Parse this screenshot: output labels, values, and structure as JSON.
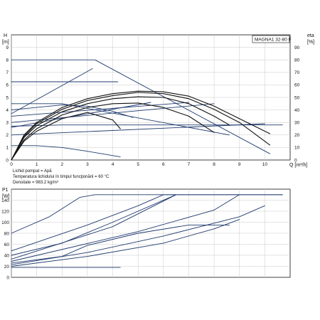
{
  "chart_data": [
    {
      "type": "line",
      "label": "MAGNA1 32-80 F",
      "ylabel_left": "H\n[m]",
      "ylabel_right": "eta\n[%]",
      "xlabel": "Q [m³/h]",
      "xlim": [
        0,
        11
      ],
      "ylim": [
        0,
        10
      ],
      "ylim_right": [
        0,
        100
      ],
      "xticks": [
        "0",
        "1",
        "2",
        "3",
        "4",
        "5",
        "6",
        "7",
        "8",
        "9",
        "10"
      ],
      "yticks_left": [
        "0",
        "1",
        "2",
        "3",
        "4",
        "5",
        "6",
        "7",
        "8",
        "9"
      ],
      "yticks_right": [
        "0",
        "10",
        "20",
        "30",
        "40",
        "50",
        "60",
        "70",
        "80",
        "90"
      ],
      "grid": true,
      "notes": [
        "Lichid pompat = Apă",
        "Temperatura lichidului în timpul funcţionării = 60 °C",
        "Densitate = 983.2 kg/m³"
      ],
      "colors": {
        "curve": "#1f3a6e",
        "efficiency": "#111111",
        "grid": "#c8c8c8"
      },
      "series": [
        {
          "values": [
            [
              0,
              8
            ],
            [
              3.3,
              8
            ],
            [
              10.2,
              0.5
            ]
          ]
        },
        {
          "values": [
            [
              0,
              6.25
            ],
            [
              4.2,
              6.25
            ]
          ]
        },
        {
          "values": [
            [
              0,
              4.5
            ],
            [
              2,
              4.5
            ],
            [
              8.6,
              2
            ]
          ]
        },
        {
          "values": [
            [
              0,
              4
            ],
            [
              1,
              4.2
            ],
            [
              2,
              4.4
            ],
            [
              3,
              4.3
            ],
            [
              4,
              3.9
            ],
            [
              4.8,
              3.4
            ]
          ]
        },
        {
          "values": [
            [
              0,
              2.7
            ],
            [
              2,
              2.8
            ],
            [
              4,
              2.8
            ],
            [
              6,
              2.8
            ],
            [
              8,
              2.8
            ],
            [
              10.7,
              2.8
            ]
          ]
        },
        {
          "values": [
            [
              0,
              1.15
            ],
            [
              1,
              1.15
            ],
            [
              2,
              1
            ],
            [
              3,
              0.7
            ],
            [
              4.3,
              0.25
            ]
          ]
        },
        {
          "values": [
            [
              0,
              2
            ],
            [
              10,
              2.9
            ]
          ]
        },
        {
          "values": [
            [
              0,
              3
            ],
            [
              8,
              4.5
            ]
          ]
        },
        {
          "values": [
            [
              0,
              3.7
            ],
            [
              3.2,
              7.3
            ]
          ]
        },
        {
          "values": [
            [
              0,
              2.6
            ],
            [
              5.5,
              4.6
            ]
          ]
        },
        {
          "values": [
            [
              0,
              3.5
            ],
            [
              7,
              4.6
            ]
          ]
        },
        {
          "values": [
            [
              0,
              0
            ],
            [
              0.5,
              1.8
            ],
            [
              1,
              2.75
            ],
            [
              2,
              3.85
            ],
            [
              3,
              4.5
            ],
            [
              4,
              4.9
            ],
            [
              5,
              5.05
            ],
            [
              6,
              5
            ],
            [
              7,
              4.5
            ],
            [
              8,
              3.5
            ],
            [
              8.6,
              2.8
            ]
          ],
          "efficiency": true
        },
        {
          "values": [
            [
              0,
              0
            ],
            [
              0.5,
              1.9
            ],
            [
              1,
              2.9
            ],
            [
              2,
              4.05
            ],
            [
              3,
              4.75
            ],
            [
              4,
              5.15
            ],
            [
              5,
              5.4
            ],
            [
              6,
              5.3
            ],
            [
              7,
              4.9
            ],
            [
              8,
              4.05
            ],
            [
              9,
              3
            ],
            [
              10.2,
              1.2
            ]
          ],
          "efficiency": true
        },
        {
          "values": [
            [
              0,
              0
            ],
            [
              0.5,
              2
            ],
            [
              1,
              3
            ],
            [
              2,
              4.2
            ],
            [
              3,
              4.9
            ],
            [
              4,
              5.3
            ],
            [
              5,
              5.5
            ],
            [
              6,
              5.45
            ],
            [
              7,
              5.1
            ],
            [
              8,
              4.3
            ],
            [
              9,
              3.3
            ],
            [
              10.2,
              2.1
            ]
          ],
          "efficiency": true
        },
        {
          "values": [
            [
              0,
              0
            ],
            [
              0.5,
              1.6
            ],
            [
              1,
              2.5
            ],
            [
              2,
              3.6
            ],
            [
              3,
              4.2
            ],
            [
              4,
              4.5
            ],
            [
              5,
              4.55
            ],
            [
              6,
              4.2
            ],
            [
              7,
              3.5
            ],
            [
              8,
              2.2
            ]
          ],
          "efficiency": true
        },
        {
          "values": [
            [
              0,
              0
            ],
            [
              0.5,
              1.5
            ],
            [
              1,
              2.3
            ],
            [
              2,
              3.3
            ],
            [
              3,
              3.8
            ],
            [
              4,
              3.2
            ],
            [
              4.3,
              2.5
            ]
          ],
          "efficiency": true
        }
      ]
    },
    {
      "type": "line",
      "ylabel": "P1\n[W]",
      "ylim": [
        0,
        160
      ],
      "yticks": [
        "0",
        "20",
        "40",
        "60",
        "80",
        "100",
        "120",
        "140"
      ],
      "grid": true,
      "series": [
        {
          "values": [
            [
              0,
              80
            ],
            [
              1.5,
              110
            ],
            [
              2.7,
              145
            ],
            [
              3.3,
              150
            ],
            [
              10.7,
              150
            ]
          ]
        },
        {
          "values": [
            [
              0,
              48
            ],
            [
              3,
              95
            ],
            [
              5,
              130
            ],
            [
              6,
              150
            ],
            [
              10.7,
              150
            ]
          ]
        },
        {
          "values": [
            [
              0,
              40
            ],
            [
              2,
              62
            ],
            [
              4,
              100
            ],
            [
              6.5,
              150
            ]
          ]
        },
        {
          "values": [
            [
              0,
              33
            ],
            [
              4,
              92
            ],
            [
              6.5,
              150
            ]
          ]
        },
        {
          "values": [
            [
              0,
              29
            ],
            [
              5,
              83
            ],
            [
              8,
              122
            ],
            [
              9,
              150
            ]
          ]
        },
        {
          "values": [
            [
              0,
              26
            ],
            [
              2,
              38
            ],
            [
              3,
              58
            ],
            [
              5,
              80
            ],
            [
              7,
              95
            ],
            [
              8.6,
              95
            ]
          ]
        },
        {
          "values": [
            [
              0,
              23
            ],
            [
              3,
              45
            ],
            [
              6,
              75
            ],
            [
              9,
              110
            ],
            [
              10,
              130
            ]
          ]
        },
        {
          "values": [
            [
              0,
              20
            ],
            [
              3,
              38
            ],
            [
              6,
              62
            ],
            [
              8,
              88
            ],
            [
              9,
              105
            ]
          ]
        },
        {
          "values": [
            [
              0,
              18
            ],
            [
              4.3,
              18
            ]
          ]
        }
      ]
    }
  ]
}
